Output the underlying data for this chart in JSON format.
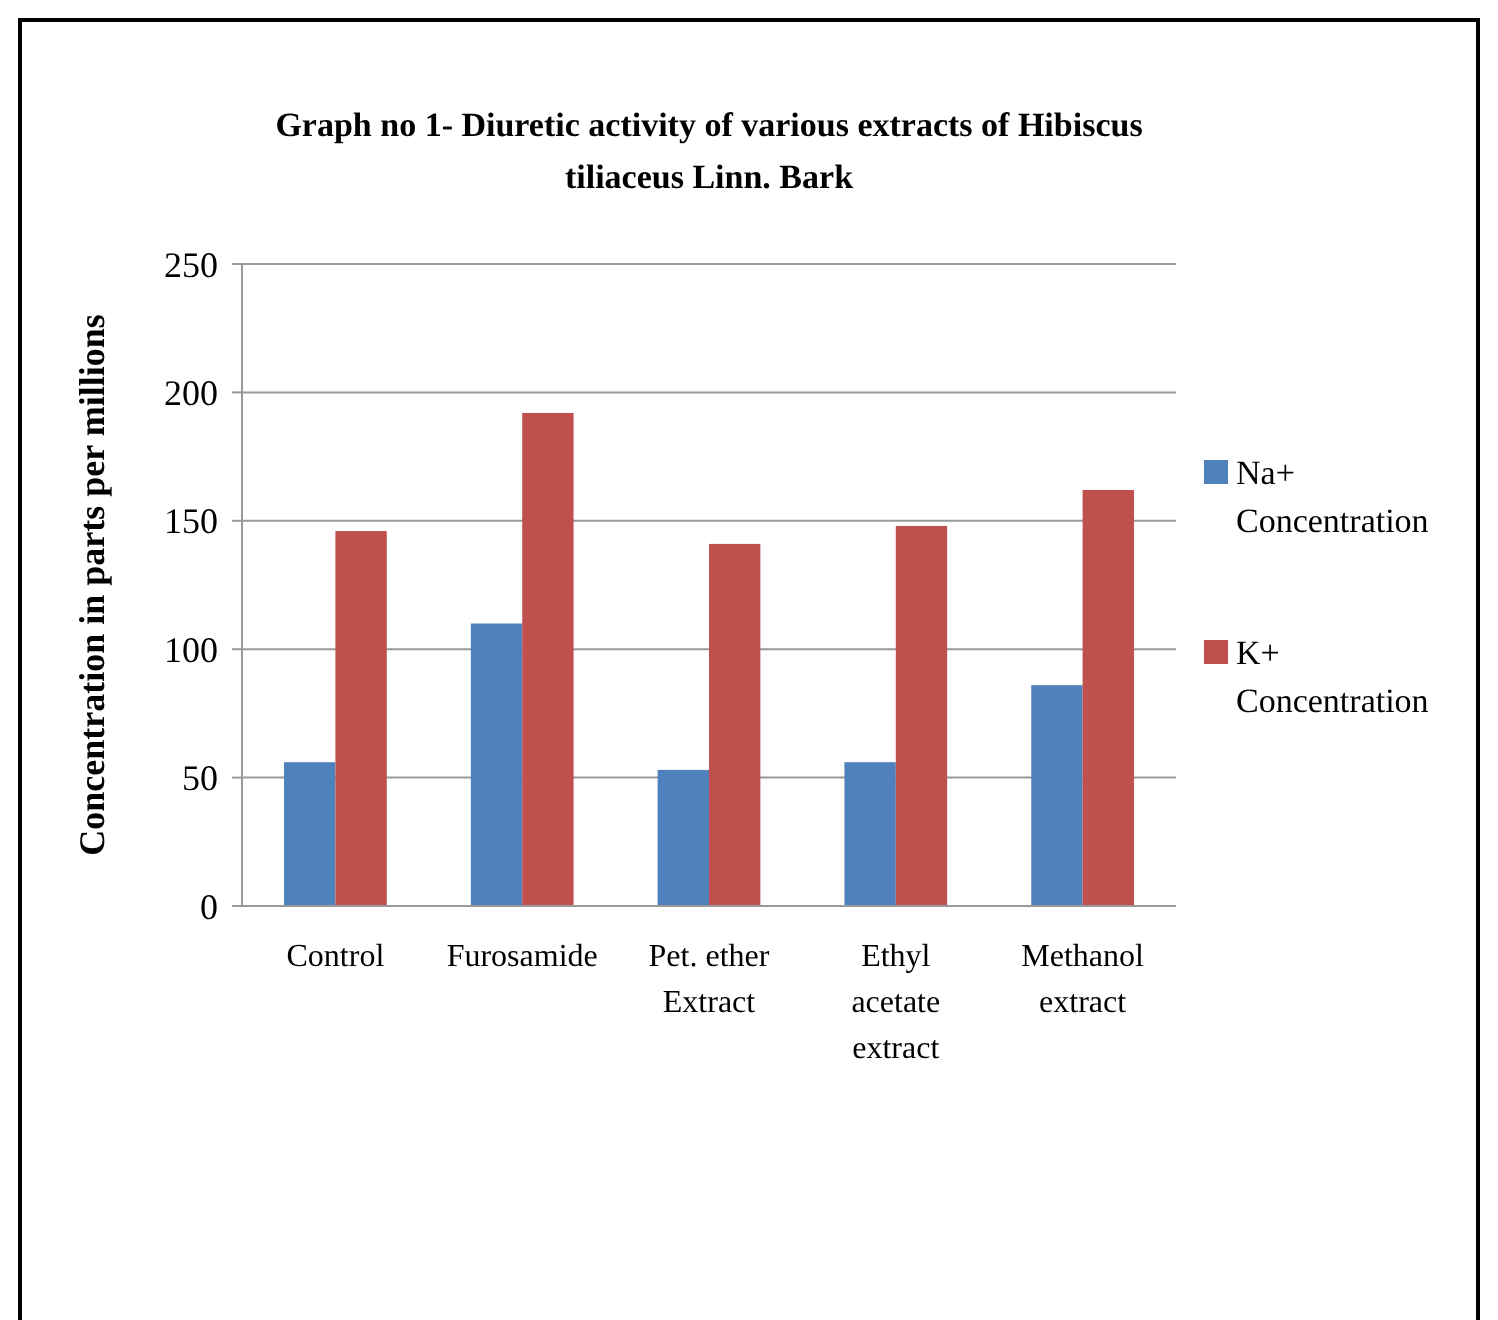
{
  "chart_data": {
    "type": "bar",
    "title": "Graph no 1- Diuretic activity of various extracts of Hibiscus tiliaceus Linn. Bark",
    "ylabel": "Concentration in parts per millions",
    "categories": [
      "Control",
      "Furosamide",
      "Pet. ether Extract",
      "Ethyl acetate extract",
      "Methanol extract"
    ],
    "series": [
      {
        "name": "Na+ Concentration",
        "color": "#4f81bd",
        "values": [
          56,
          110,
          53,
          56,
          86
        ]
      },
      {
        "name": "K+ Concentration",
        "color": "#c0504d",
        "values": [
          146,
          192,
          141,
          148,
          162
        ]
      }
    ],
    "ylim": [
      0,
      250
    ],
    "yticks": [
      0,
      50,
      100,
      150,
      200,
      250
    ],
    "grid": "y",
    "legend": "right"
  }
}
